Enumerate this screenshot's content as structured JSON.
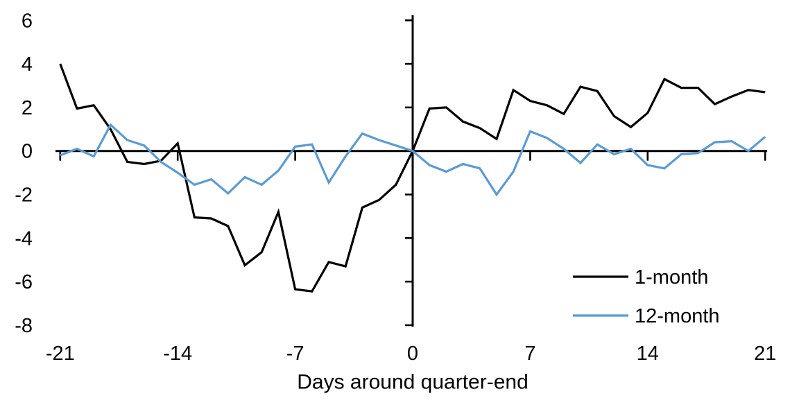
{
  "chart_data": {
    "type": "line",
    "title": "",
    "xlabel": "Days around quarter-end",
    "ylabel": "",
    "xlim": [
      -21,
      21
    ],
    "ylim": [
      -8,
      6
    ],
    "xticks": [
      -21,
      -14,
      -7,
      0,
      7,
      14,
      21
    ],
    "yticks": [
      6,
      4,
      2,
      0,
      -2,
      -4,
      -6,
      -8
    ],
    "grid": false,
    "legend_position": "lower-right-inside",
    "axis_color": "#000000",
    "x": [
      -21,
      -20,
      -19,
      -18,
      -17,
      -16,
      -15,
      -14,
      -13,
      -12,
      -11,
      -10,
      -9,
      -8,
      -7,
      -6,
      -5,
      -4,
      -3,
      -2,
      -1,
      0,
      1,
      2,
      3,
      4,
      5,
      6,
      7,
      8,
      9,
      10,
      11,
      12,
      13,
      14,
      15,
      16,
      17,
      18,
      19,
      20,
      21
    ],
    "series": [
      {
        "name": "1-month",
        "color": "#000000",
        "values": [
          4.0,
          1.95,
          2.1,
          1.0,
          -0.5,
          -0.6,
          -0.45,
          0.35,
          -3.05,
          -3.1,
          -3.45,
          -5.25,
          -4.65,
          -2.8,
          -6.35,
          -6.45,
          -5.1,
          -5.3,
          -2.6,
          -2.25,
          -1.55,
          0.0,
          1.95,
          2.0,
          1.35,
          1.05,
          0.55,
          2.8,
          2.3,
          2.1,
          1.7,
          2.95,
          2.75,
          1.6,
          1.1,
          1.75,
          3.3,
          2.9,
          2.9,
          2.15,
          2.5,
          2.8,
          2.7
        ]
      },
      {
        "name": "12-month",
        "color": "#5b9bd5",
        "values": [
          -0.2,
          0.1,
          -0.25,
          1.2,
          0.5,
          0.25,
          -0.5,
          -1.0,
          -1.55,
          -1.3,
          -1.95,
          -1.2,
          -1.55,
          -0.9,
          0.2,
          0.3,
          -1.45,
          -0.25,
          0.8,
          0.5,
          0.25,
          0.0,
          -0.65,
          -0.95,
          -0.6,
          -0.8,
          -2.0,
          -0.95,
          0.9,
          0.6,
          0.1,
          -0.55,
          0.3,
          -0.15,
          0.1,
          -0.65,
          -0.8,
          -0.15,
          -0.1,
          0.4,
          0.45,
          0.0,
          0.65
        ]
      }
    ]
  }
}
